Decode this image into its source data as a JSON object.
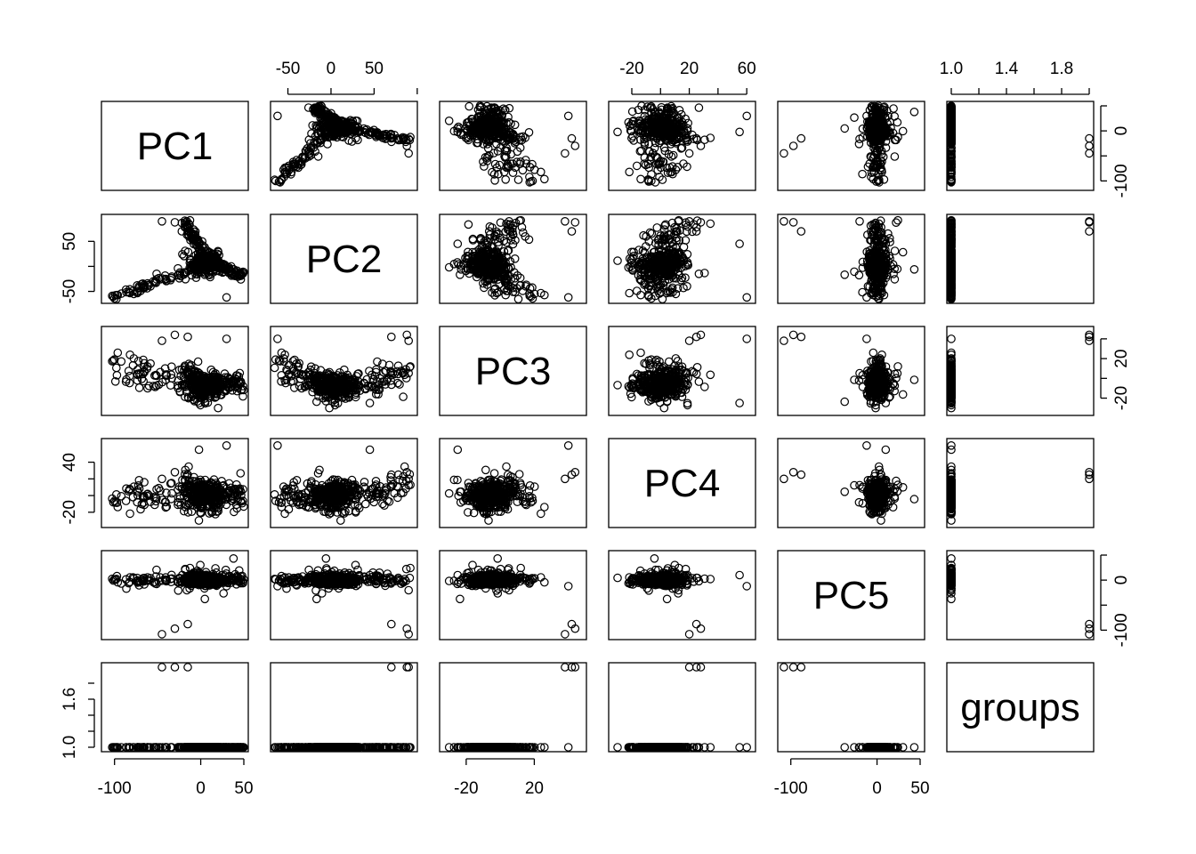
{
  "chart_data": {
    "type": "scatter",
    "plot_kind": "scatterplot-matrix",
    "variables": [
      "PC1",
      "PC2",
      "PC3",
      "PC4",
      "PC5",
      "groups"
    ],
    "ranges": {
      "PC1": [
        -110,
        50
      ],
      "PC2": [
        -65,
        95
      ],
      "PC3": [
        -33,
        48
      ],
      "PC4": [
        -33,
        63
      ],
      "PC5": [
        -110,
        50
      ],
      "groups": [
        1.0,
        2.0
      ]
    },
    "axis_ticks": {
      "PC1": [
        -100,
        0,
        50
      ],
      "PC2": [
        -50,
        0,
        50
      ],
      "PC3": [
        -20,
        20
      ],
      "PC4": [
        -20,
        20,
        60
      ],
      "PC5": [
        -100,
        0,
        50
      ],
      "groups": [
        1.0,
        1.4,
        1.8
      ]
    },
    "left_ticks": {
      "PC2": [
        -50,
        50
      ],
      "PC4": [
        -20,
        40
      ],
      "groups": [
        1.0,
        1.6
      ]
    },
    "right_ticks": {
      "PC1": [
        -100,
        0
      ],
      "PC3": [
        -20,
        20
      ],
      "PC5": [
        -100,
        0
      ]
    },
    "bottom_tick_labels": {
      "PC1": [
        "-100",
        "0",
        "50"
      ],
      "PC3": [
        "-20",
        "20"
      ],
      "PC5": [
        "-100",
        "0",
        "50"
      ]
    },
    "top_tick_labels": {
      "PC2": [
        "-50",
        "0",
        "50"
      ],
      "PC4": [
        "-20",
        "20",
        "60"
      ],
      "groups": [
        "1.0",
        "1.4",
        "1.8"
      ]
    },
    "left_tick_labels": {
      "PC2": [
        "-50",
        "50"
      ],
      "PC4": [
        "-20",
        "40"
      ],
      "groups": [
        "1.0",
        "1.6"
      ]
    },
    "right_tick_labels": {
      "PC1": [
        "-100",
        "0"
      ],
      "PC3": [
        "-20",
        "20"
      ],
      "PC5": [
        "-100",
        "0"
      ]
    },
    "n_points_approx": 420,
    "marker": "open circle",
    "grid": false,
    "legend": "none"
  }
}
